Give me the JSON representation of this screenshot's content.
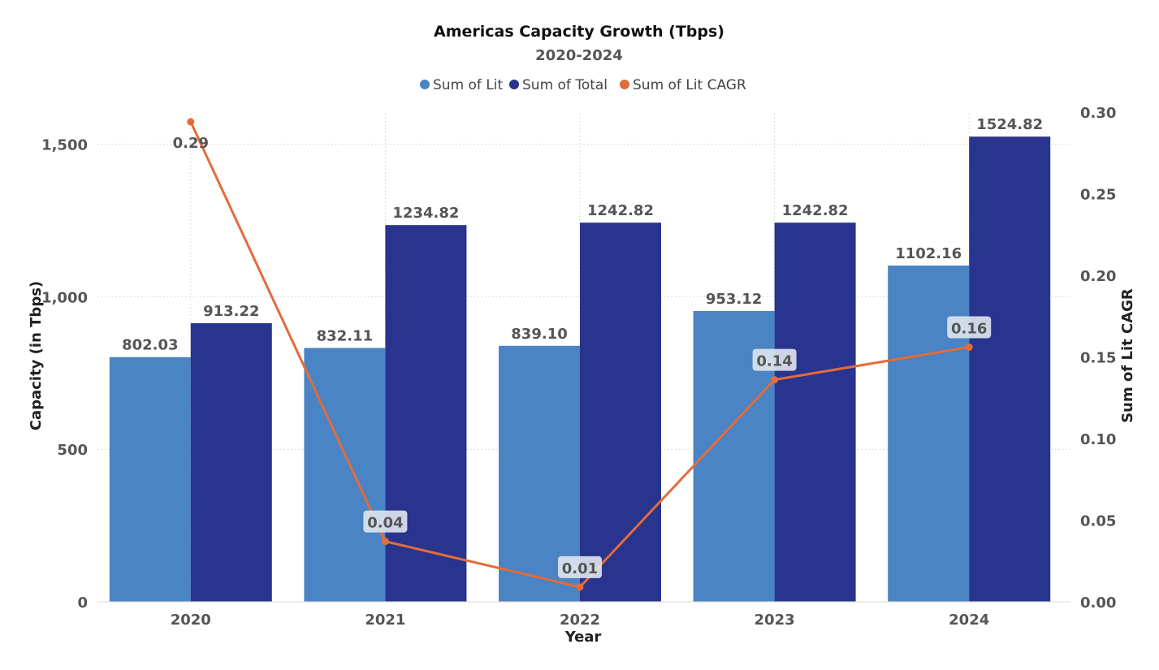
{
  "chart_data": {
    "type": "bar",
    "title": "Americas Capacity Growth (Tbps)",
    "subtitle": "2020-2024",
    "xlabel": "Year",
    "ylabel": "Capacity (in Tbps)",
    "y2label": "Sum of Lit CAGR",
    "categories": [
      "2020",
      "2021",
      "2022",
      "2023",
      "2024"
    ],
    "ylim": [
      0,
      1600
    ],
    "yticks": [
      0,
      500,
      1000,
      1500
    ],
    "ytick_labels": [
      "0",
      "500",
      "1,000",
      "1,500"
    ],
    "y2lim": [
      0,
      0.3
    ],
    "y2ticks": [
      0,
      0.05,
      0.1,
      0.15,
      0.2,
      0.25,
      0.3
    ],
    "y2tick_labels": [
      "0.00",
      "0.05",
      "0.10",
      "0.15",
      "0.20",
      "0.25",
      "0.30"
    ],
    "grid": true,
    "legend_position": "top-center",
    "series": [
      {
        "name": "Sum of Lit",
        "type": "bar",
        "axis": "left",
        "color": "#4A84C4",
        "values": [
          802.03,
          832.11,
          839.1,
          953.12,
          1102.16
        ],
        "labels": [
          "802.03",
          "832.11",
          "839.10",
          "953.12",
          "1102.16"
        ]
      },
      {
        "name": "Sum of Total",
        "type": "bar",
        "axis": "left",
        "color": "#29348E",
        "values": [
          913.22,
          1234.82,
          1242.82,
          1242.82,
          1524.82
        ],
        "labels": [
          "913.22",
          "1234.82",
          "1242.82",
          "1242.82",
          "1524.82"
        ]
      },
      {
        "name": "Sum of Lit CAGR",
        "type": "line",
        "axis": "right",
        "color": "#E36C3A",
        "values": [
          0.294,
          0.037,
          0.009,
          0.136,
          0.156
        ],
        "labels": [
          "0.29",
          "0.04",
          "0.01",
          "0.14",
          "0.16"
        ]
      }
    ]
  }
}
